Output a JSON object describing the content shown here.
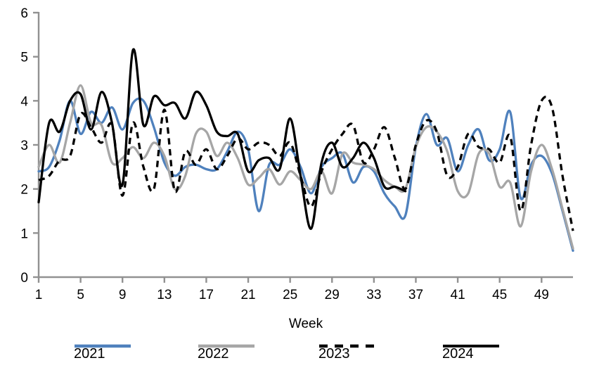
{
  "chart_data": {
    "type": "line",
    "title": "",
    "xlabel": "Week",
    "ylabel": "",
    "line_style": "smooth",
    "grid": false,
    "legend_position": "bottom",
    "axis_color": "#919191",
    "xlim": [
      1,
      52
    ],
    "ylim": [
      0,
      6
    ],
    "x_ticks": [
      1,
      5,
      9,
      13,
      17,
      21,
      25,
      29,
      33,
      37,
      41,
      45,
      49
    ],
    "y_ticks": [
      0,
      1,
      2,
      3,
      4,
      5,
      6
    ],
    "x_unit": "week",
    "series": [
      {
        "name": "2021",
        "color": "#4f81bd",
        "dash": "solid",
        "start_week": 1,
        "values": [
          2.4,
          2.5,
          3.1,
          4.0,
          3.25,
          3.75,
          3.5,
          3.85,
          3.35,
          3.95,
          4.0,
          3.4,
          2.6,
          2.3,
          2.5,
          2.55,
          2.45,
          2.45,
          2.85,
          3.3,
          2.9,
          1.5,
          2.55,
          2.55,
          2.9,
          2.5,
          1.9,
          2.5,
          2.7,
          2.8,
          2.15,
          2.5,
          2.4,
          1.9,
          1.6,
          1.4,
          2.95,
          3.7,
          3.0,
          3.15,
          2.4,
          3.0,
          3.35,
          2.65,
          2.9,
          3.75,
          1.8,
          2.55,
          2.75,
          2.35,
          1.5,
          0.6
        ]
      },
      {
        "name": "2022",
        "color": "#a6a6a6",
        "dash": "solid",
        "start_week": 1,
        "values": [
          2.5,
          3.0,
          2.6,
          3.5,
          4.35,
          3.5,
          3.45,
          2.6,
          2.7,
          2.95,
          2.7,
          3.05,
          2.75,
          2.0,
          2.3,
          3.25,
          3.3,
          2.75,
          3.05,
          2.7,
          2.1,
          2.25,
          2.45,
          2.1,
          2.4,
          2.2,
          2.0,
          2.4,
          1.9,
          2.8,
          2.6,
          2.55,
          2.45,
          2.2,
          2.05,
          2.0,
          2.95,
          3.4,
          3.3,
          2.85,
          1.95,
          1.9,
          2.8,
          2.8,
          2.05,
          2.15,
          1.15,
          2.4,
          3.0,
          2.45,
          1.55,
          0.65
        ]
      },
      {
        "name": "2023",
        "color": "#000000",
        "dash": "dashed",
        "start_week": 1,
        "values": [
          2.2,
          2.3,
          2.65,
          2.75,
          3.7,
          3.4,
          3.05,
          3.45,
          1.85,
          3.5,
          2.5,
          2.0,
          3.8,
          1.95,
          2.85,
          2.55,
          2.9,
          2.45,
          2.75,
          3.15,
          2.9,
          3.05,
          3.0,
          2.75,
          3.05,
          2.3,
          1.6,
          2.4,
          2.9,
          3.25,
          3.45,
          2.6,
          2.9,
          3.4,
          2.7,
          2.0,
          3.0,
          3.55,
          3.3,
          2.3,
          2.5,
          3.25,
          2.95,
          2.9,
          2.6,
          3.2,
          1.5,
          3.0,
          4.0,
          3.85,
          2.3,
          1.05
        ]
      },
      {
        "name": "2024",
        "color": "#000000",
        "dash": "solid",
        "start_week": 1,
        "values": [
          1.7,
          3.5,
          3.3,
          4.0,
          4.15,
          3.35,
          4.2,
          3.5,
          2.1,
          5.15,
          3.45,
          4.1,
          3.9,
          3.95,
          3.6,
          4.2,
          3.9,
          3.3,
          3.2,
          3.25,
          2.4,
          2.65,
          2.7,
          2.45,
          3.6,
          2.3,
          1.1,
          2.6,
          3.05,
          2.5,
          2.7,
          3.05,
          2.7,
          2.05,
          2.05,
          1.95
        ]
      }
    ]
  }
}
